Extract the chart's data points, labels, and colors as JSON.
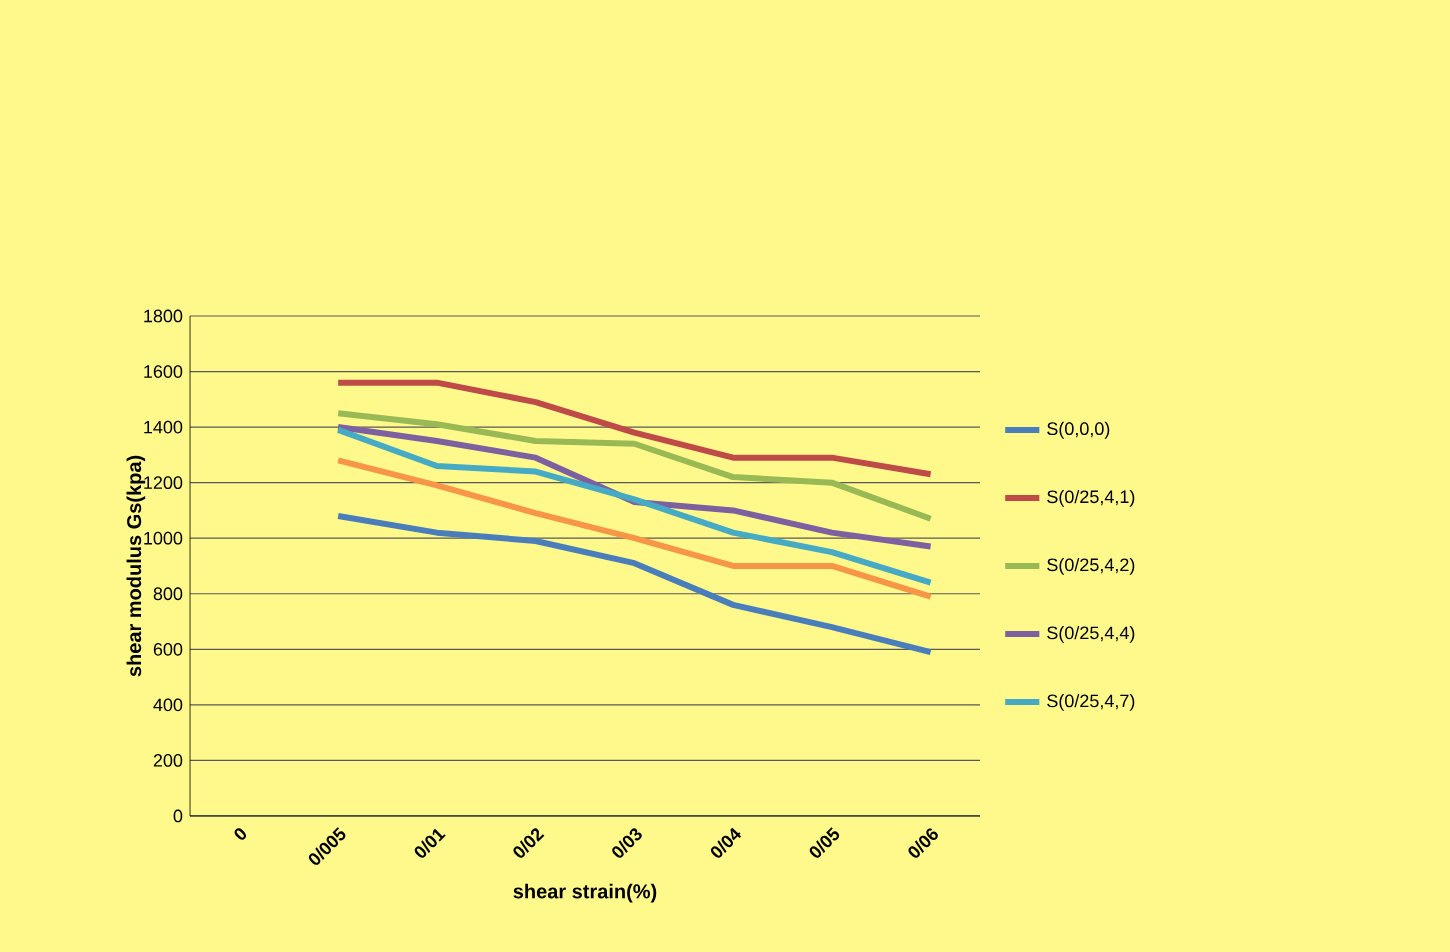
{
  "chart_data": {
    "type": "line",
    "xlabel": "shear strain(%)",
    "ylabel": "shear modulus  Gs(kpa)",
    "categories": [
      "0",
      "0/005",
      "0/01",
      "0/02",
      "0/03",
      "0/04",
      "0/05",
      "0/06"
    ],
    "series": [
      {
        "name": "S(0,0,0)",
        "color": "#4a7ebb",
        "values": [
          null,
          1080,
          1020,
          990,
          910,
          760,
          680,
          590
        ]
      },
      {
        "name": "S(0/25,4,1)",
        "color": "#be4b48",
        "values": [
          null,
          1560,
          1560,
          1490,
          1380,
          1290,
          1290,
          1230
        ]
      },
      {
        "name": "S(0/25,4,2)",
        "color": "#98b954",
        "values": [
          null,
          1450,
          1410,
          1350,
          1340,
          1220,
          1200,
          1070
        ]
      },
      {
        "name": "S(0/25,4,4)",
        "color": "#7d60a0",
        "values": [
          null,
          1400,
          1350,
          1290,
          1130,
          1100,
          1020,
          970
        ]
      },
      {
        "name": "S(0/25,4,7)",
        "color": "#46aac5",
        "values": [
          null,
          1390,
          1260,
          1240,
          1140,
          1020,
          950,
          840
        ]
      },
      {
        "color": "#f79646",
        "values": [
          null,
          1280,
          1190,
          1090,
          1000,
          900,
          900,
          790
        ]
      }
    ],
    "ylim": [
      0,
      1800
    ],
    "yticks": [
      0,
      200,
      400,
      600,
      800,
      1000,
      1200,
      1400,
      1600,
      1800
    ],
    "grid": "y",
    "legend": "right",
    "marker": "none",
    "line_style": "solid"
  }
}
